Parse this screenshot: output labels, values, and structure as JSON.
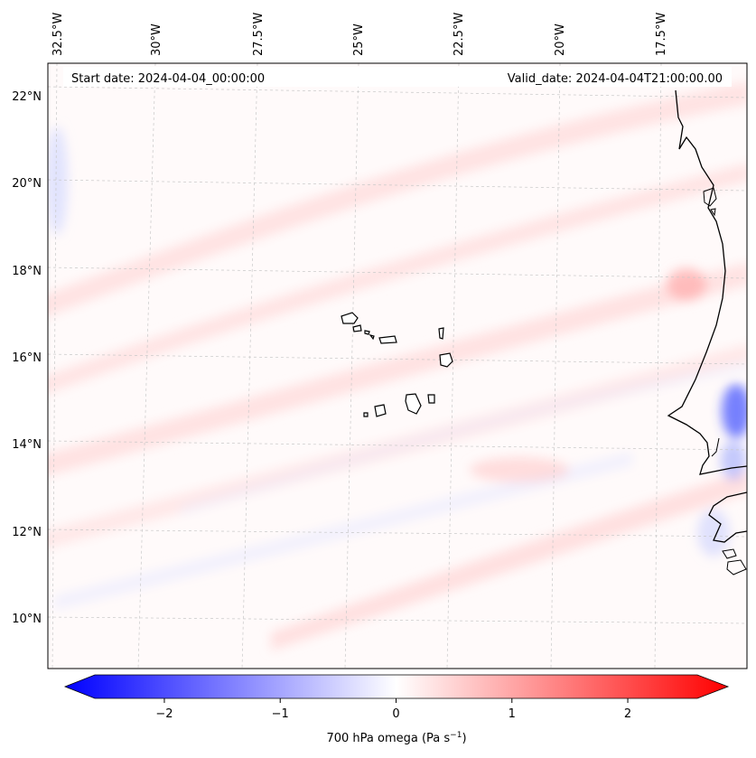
{
  "map": {
    "header_left": "Start date: 2024-04-04_00:00:00",
    "header_right": "Valid_date: 2024-04-04T21:00:00.00",
    "lon_labels": [
      "32.5°W",
      "30°W",
      "27.5°W",
      "25°W",
      "22.5°W",
      "20°W",
      "17.5°W"
    ],
    "lat_labels": [
      "22°N",
      "20°N",
      "18°N",
      "16°N",
      "14°N",
      "12°N",
      "10°N"
    ],
    "field": "700 hPa omega",
    "colors": {
      "negative": "#0000ff",
      "zero": "#ffffff",
      "positive": "#ff0000",
      "coastline": "#000000",
      "gridline": "#c8c8c8"
    }
  },
  "colorbar": {
    "ticks": [
      "−2",
      "−1",
      "0",
      "1",
      "2"
    ],
    "tick_values": [
      -2,
      -1,
      0,
      1,
      2
    ],
    "range": [
      -2.6,
      2.6
    ],
    "label_main": "700 hPa omega (Pa s",
    "label_exp": "−1",
    "label_close": ")"
  }
}
